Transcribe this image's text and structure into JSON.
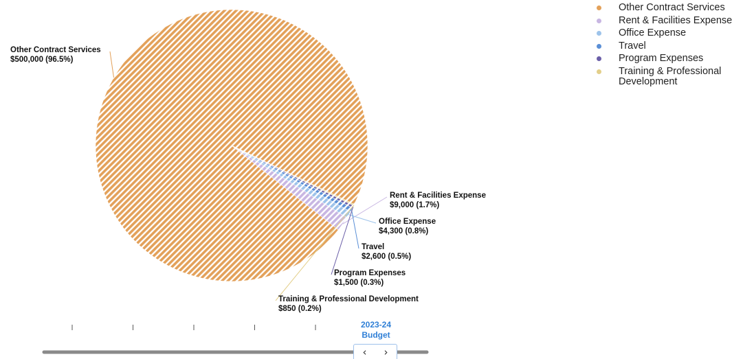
{
  "chart_data": {
    "type": "pie",
    "title": "",
    "slices": [
      {
        "label": "Other Contract Services",
        "value": 500000,
        "value_label": "$500,000 (96.5%)",
        "percent": 96.5,
        "color": "#e3a15a",
        "pattern": "diagonal-stripes"
      },
      {
        "label": "Rent & Facilities Expense",
        "value": 9000,
        "value_label": "$9,000 (1.7%)",
        "percent": 1.7,
        "color": "#c8b6e2",
        "pattern": "diagonal-stripes"
      },
      {
        "label": "Office Expense",
        "value": 4300,
        "value_label": "$4,300 (0.8%)",
        "percent": 0.8,
        "color": "#9dc3ea",
        "pattern": "diagonal-stripes"
      },
      {
        "label": "Travel",
        "value": 2600,
        "value_label": "$2,600 (0.5%)",
        "percent": 0.5,
        "color": "#5a8fd6",
        "pattern": "diagonal-stripes"
      },
      {
        "label": "Program Expenses",
        "value": 1500,
        "value_label": "$1,500 (0.3%)",
        "percent": 0.3,
        "color": "#6b5fa8",
        "pattern": "diagonal-stripes"
      },
      {
        "label": "Training & Professional Development",
        "value": 850,
        "value_label": "$850 (0.2%)",
        "percent": 0.2,
        "color": "#e3cf8a",
        "pattern": "diagonal-stripes"
      }
    ],
    "legend": {
      "position": "top-right",
      "items": [
        "Other Contract Services",
        "Rent & Facilities Expense",
        "Office Expense",
        "Travel",
        "Program Expenses",
        "Training & Professional Development"
      ]
    }
  },
  "navigator": {
    "period_line1": "2023-24",
    "period_line2": "Budget",
    "prev_icon": "chevron-left-icon",
    "next_icon": "chevron-right-icon",
    "prev_glyph": "‹",
    "next_glyph": "›",
    "tick_count": 5
  }
}
